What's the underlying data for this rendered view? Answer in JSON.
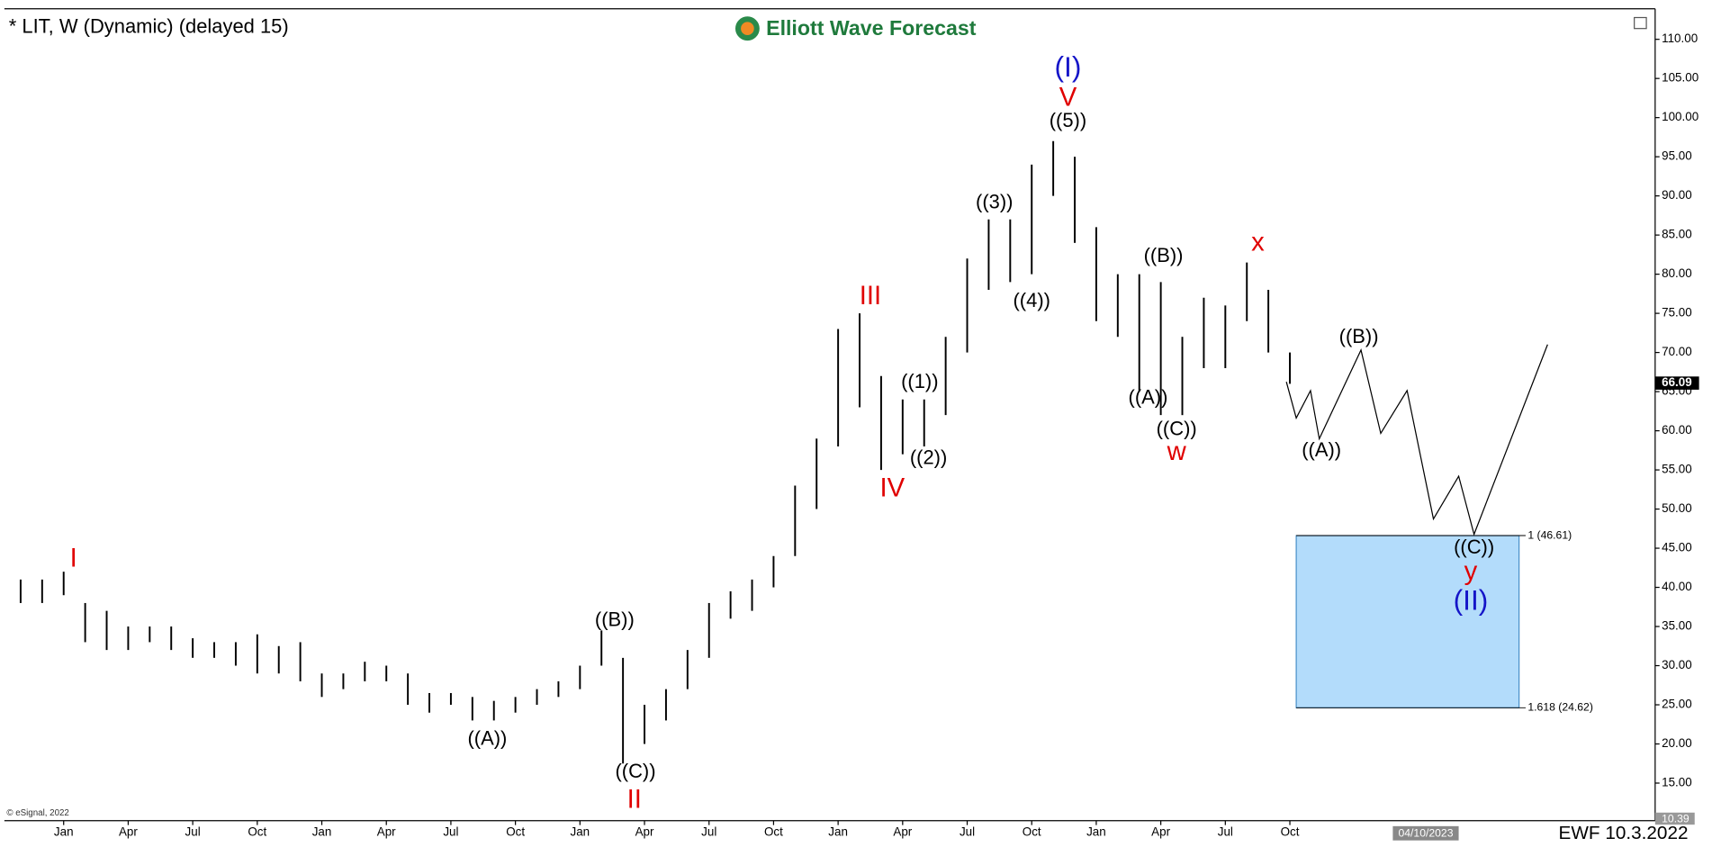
{
  "chart_data": {
    "type": "range-bar",
    "title": "* LIT, W (Dynamic) (delayed 15)",
    "logo": "Elliott Wave Forecast",
    "copyright": "© eSignal, 2022",
    "footer": "EWF 10.3.2022",
    "cursor_date": "04/10/2023",
    "last_price": {
      "value": 66.09,
      "label": "66.09"
    },
    "low_price": {
      "value": 10.39,
      "label": "10.39"
    },
    "color": "#000000",
    "categories": [
      null,
      null,
      "Jan",
      null,
      null,
      "Apr",
      null,
      null,
      "Jul",
      null,
      null,
      "Oct",
      null,
      null,
      "Jan",
      null,
      null,
      "Apr",
      null,
      null,
      "Jul",
      null,
      null,
      "Oct",
      null,
      null,
      "Jan",
      null,
      null,
      "Apr",
      null,
      null,
      "Jul",
      null,
      null,
      "Oct",
      null,
      null,
      "Jan",
      null,
      null,
      "Apr",
      null,
      null,
      "Jul",
      null,
      null,
      "Oct",
      null,
      null,
      "Jan",
      null,
      null,
      "Apr",
      null,
      null,
      "Jul",
      null,
      null,
      "Oct"
    ],
    "high": [
      41,
      41,
      42,
      38,
      37,
      35,
      35,
      35,
      33.5,
      33,
      33,
      34,
      32.5,
      33,
      29,
      29,
      30.5,
      30,
      29,
      26.5,
      26.5,
      26,
      25.5,
      26,
      27,
      28,
      30,
      34.5,
      31,
      25,
      27,
      32,
      38,
      39.5,
      41,
      44,
      53,
      59,
      73,
      75,
      67,
      64,
      64,
      72,
      82,
      87,
      87,
      94,
      97,
      95,
      86,
      80,
      80,
      79,
      72,
      77,
      76,
      81.5,
      78,
      70
    ],
    "low": [
      38,
      38,
      39,
      33,
      32,
      32,
      33,
      32,
      31,
      31,
      30,
      29,
      29,
      28,
      26,
      27,
      28,
      28,
      25,
      24,
      25,
      23,
      23,
      24,
      25,
      26,
      27,
      30,
      17.5,
      20,
      23,
      27,
      31,
      36,
      37,
      40,
      44,
      50,
      58,
      63,
      55,
      57,
      58,
      62,
      70,
      78,
      79,
      80,
      90,
      84,
      74,
      72,
      65,
      62,
      62,
      68,
      68,
      74,
      70,
      66
    ],
    "ylim": [
      10.2,
      113.9
    ],
    "yticks": [
      {
        "value": 15,
        "label": "15.00"
      },
      {
        "value": 20,
        "label": "20.00"
      },
      {
        "value": 25,
        "label": "25.00"
      },
      {
        "value": 30,
        "label": "30.00"
      },
      {
        "value": 35,
        "label": "35.00"
      },
      {
        "value": 40,
        "label": "40.00"
      },
      {
        "value": 45,
        "label": "45.00"
      },
      {
        "value": 50,
        "label": "50.00"
      },
      {
        "value": 55,
        "label": "55.00"
      },
      {
        "value": 60,
        "label": "60.00"
      },
      {
        "value": 65,
        "label": "65.00"
      },
      {
        "value": 70,
        "label": "70.00"
      },
      {
        "value": 75,
        "label": "75.00"
      },
      {
        "value": 80,
        "label": "80.00"
      },
      {
        "value": 85,
        "label": "85.00"
      },
      {
        "value": 90,
        "label": "90.00"
      },
      {
        "value": 95,
        "label": "95.00"
      },
      {
        "value": 100,
        "label": "100.00"
      },
      {
        "value": 105,
        "label": "105.00"
      },
      {
        "value": 110,
        "label": "110.00"
      }
    ],
    "fib_levels": [
      {
        "value": 46.61,
        "label": "1 (46.61)"
      },
      {
        "value": 24.62,
        "label": "1.618 (24.62)"
      }
    ],
    "fib_color": "#b3dcfb",
    "annotations": [
      {
        "text": "I",
        "color": "#e00000"
      },
      {
        "text": "((B))",
        "color": "#000000"
      },
      {
        "text": "((A))",
        "color": "#000000"
      },
      {
        "text": "((C))",
        "color": "#000000"
      },
      {
        "text": "II",
        "color": "#e00000"
      },
      {
        "text": "III",
        "color": "#e00000"
      },
      {
        "text": "IV",
        "color": "#e00000"
      },
      {
        "text": "((1))",
        "color": "#000000"
      },
      {
        "text": "((2))",
        "color": "#000000"
      },
      {
        "text": "((3))",
        "color": "#000000"
      },
      {
        "text": "((4))",
        "color": "#000000"
      },
      {
        "text": "(I)",
        "color": "#1515c8"
      },
      {
        "text": "V",
        "color": "#e00000"
      },
      {
        "text": "((5))",
        "color": "#000000"
      },
      {
        "text": "((B))",
        "color": "#000000"
      },
      {
        "text": "((A))",
        "color": "#000000"
      },
      {
        "text": "((C))",
        "color": "#000000"
      },
      {
        "text": "w",
        "color": "#e00000"
      },
      {
        "text": "x",
        "color": "#e00000"
      },
      {
        "text": "((B))",
        "color": "#000000"
      },
      {
        "text": "((A))",
        "color": "#000000"
      },
      {
        "text": "((C))",
        "color": "#000000"
      },
      {
        "text": "y",
        "color": "#e00000"
      },
      {
        "text": "(II)",
        "color": "#1515c8"
      }
    ]
  }
}
